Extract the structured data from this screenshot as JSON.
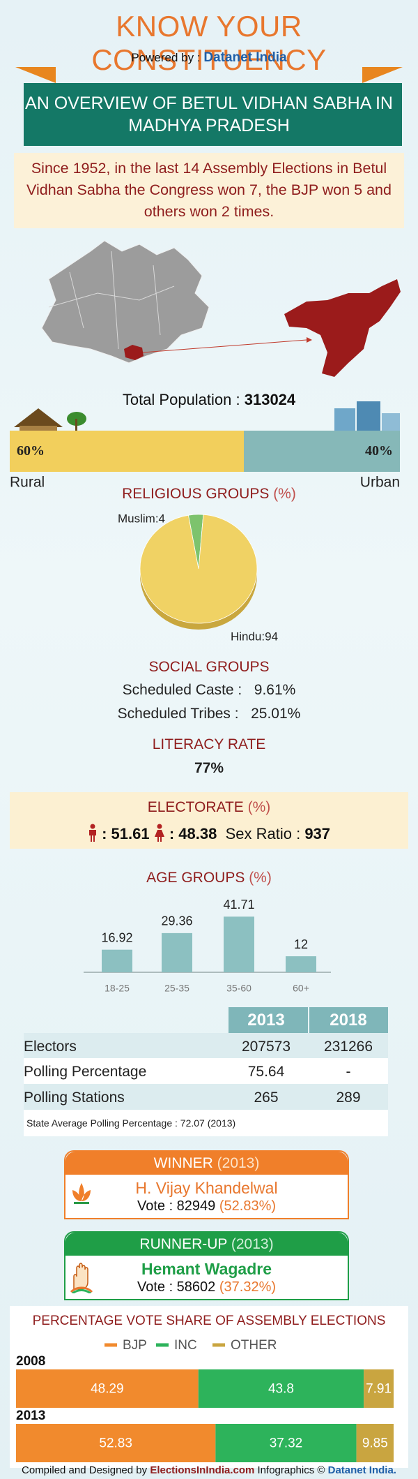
{
  "header": {
    "title": "KNOW YOUR CONSTITUENCY",
    "powered_by": "Powered by :",
    "brand": "Datanet India",
    "banner": [
      "AN OVERVIEW OF BETUL VIDHAN SABHA IN",
      "MADHYA PRADESH"
    ]
  },
  "summary": "Since 1952, in the last 14 Assembly Elections in Betul Vidhan Sabha the Congress won 7, the BJP won 5 and others won 2 times.",
  "population": {
    "label": "Total Population :",
    "value": 313024
  },
  "social_groups": {
    "title": "SOCIAL GROUPS",
    "items": [
      {
        "label": "Scheduled Caste :",
        "value": "9.61%"
      },
      {
        "label": "Scheduled Tribes :",
        "value": "25.01%"
      }
    ]
  },
  "literacy": {
    "title": "LITERACY RATE",
    "value": "77%"
  },
  "electorate": {
    "title": "ELECTORATE",
    "unit": "(%)",
    "male": ": 51.61",
    "female": ": 48.38",
    "sex_ratio_label": "Sex Ratio :",
    "sex_ratio": 937
  },
  "table": {
    "columns": [
      "2013",
      "2018"
    ],
    "rows": [
      [
        "Electors",
        207573,
        231266
      ],
      [
        "Polling Percentage",
        75.64,
        "-"
      ],
      [
        "Polling Stations",
        265,
        289
      ]
    ],
    "note": "State Average Polling Percentage : 72.07 (2013)"
  },
  "winner": {
    "heading": "WINNER",
    "year": "(2013)",
    "name": "H. Vijay Khandelwal",
    "vote": "Vote : 82949",
    "share": "(52.83%)"
  },
  "runner_up": {
    "heading": "RUNNER-UP",
    "year": "(2013)",
    "name": "Hemant Wagadre",
    "vote": "Vote : 58602",
    "share": "(37.32%)"
  },
  "footer": {
    "prefix": "Compiled and Designed by",
    "site": "ElectionsInIndia.com",
    "middle": "Infographics ©",
    "brand": "Datanet India."
  },
  "chart_data": [
    {
      "type": "hbar-stacked",
      "xlim": [
        0,
        100
      ],
      "series": [
        {
          "name": "Rural",
          "color": "#f2cf5c",
          "values": [
            60
          ],
          "value_labels": [
            "60%"
          ]
        },
        {
          "name": "Urban",
          "color": "#86b8b8",
          "values": [
            40
          ],
          "value_labels": [
            "40%"
          ]
        }
      ]
    },
    {
      "type": "pie",
      "title": "RELIGIOUS GROUPS",
      "unit": "(%)",
      "labels": [
        "Muslim:4",
        "Hindu:94"
      ],
      "values": [
        4,
        94
      ],
      "colors": [
        "#7dc36d",
        "#f0d264"
      ]
    },
    {
      "type": "bar",
      "title": "AGE GROUPS",
      "unit": "(%)",
      "categories": [
        "18-25",
        "25-35",
        "35-60",
        "60+"
      ],
      "values": [
        16.92,
        29.36,
        41.71,
        12
      ],
      "ylim": [
        0,
        45
      ],
      "color": "#8cc0c1"
    },
    {
      "type": "vote-share",
      "title": "PERCENTAGE VOTE SHARE OF ASSEMBLY ELECTIONS",
      "xlim": [
        0,
        100
      ],
      "categories": [
        "2008",
        "2013"
      ],
      "series": [
        {
          "name": "BJP",
          "color": "#f18a2d",
          "values": [
            48.29,
            52.83
          ]
        },
        {
          "name": "INC",
          "color": "#2db35b",
          "values": [
            43.8,
            37.32
          ]
        },
        {
          "name": "OTHER",
          "color": "#c9a540",
          "values": [
            7.91,
            9.85
          ]
        }
      ]
    }
  ]
}
